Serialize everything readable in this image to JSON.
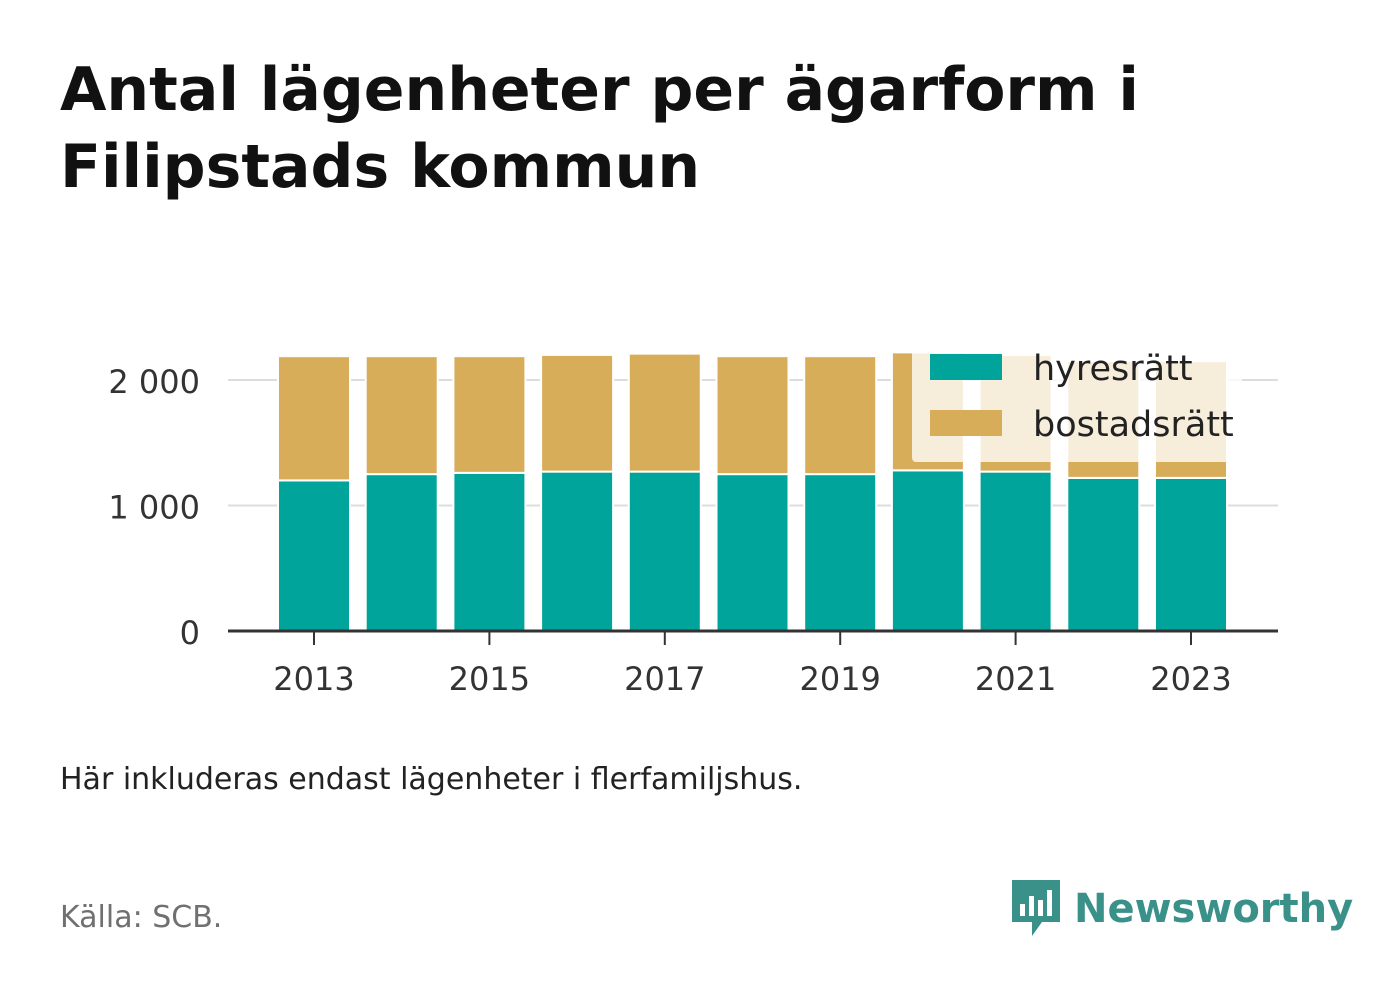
{
  "title": "Antal lägenheter per ägarform i Filipstads kommun",
  "note": "Här inkluderas endast lägenheter i flerfamiljshus.",
  "source": "Källa: SCB.",
  "brand": "Newsworthy",
  "colors": {
    "hyresratt": "#00a49a",
    "bostadsratt": "#d8ad5a",
    "brand": "#3a9189"
  },
  "chart_data": {
    "type": "bar",
    "stacked": true,
    "categories": [
      2013,
      2014,
      2015,
      2016,
      2017,
      2018,
      2019,
      2020,
      2021,
      2022,
      2023
    ],
    "x_tick_labels": [
      "2013",
      "2015",
      "2017",
      "2019",
      "2021",
      "2023"
    ],
    "y_ticks": [
      0,
      1000,
      2000
    ],
    "y_tick_labels": [
      "0",
      "1 000",
      "2 000"
    ],
    "ylim": [
      0,
      2300
    ],
    "grid": true,
    "legend_position": "top-right",
    "series": [
      {
        "name": "hyresrätt",
        "color": "#00a49a",
        "values": [
          1200,
          1250,
          1260,
          1270,
          1270,
          1250,
          1250,
          1280,
          1270,
          1220,
          1220
        ]
      },
      {
        "name": "bostadsrätt",
        "color": "#d8ad5a",
        "values": [
          990,
          940,
          930,
          930,
          940,
          940,
          940,
          940,
          930,
          930,
          930
        ]
      }
    ]
  }
}
